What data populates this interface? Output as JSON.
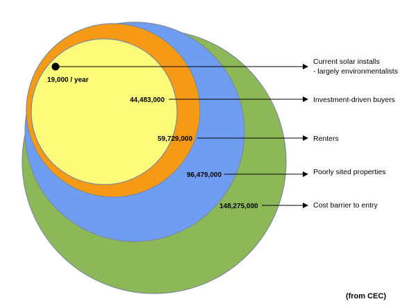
{
  "diagram": {
    "source_note": "(from CEC)",
    "colors": {
      "cost_barrier": "#8db857",
      "poorly_sited": "#6f9df2",
      "renters": "#f69a16",
      "investment": "#fcfc7a",
      "outline": "#7a8a9a",
      "dot": "#000000"
    },
    "layers": [
      {
        "value": "148,275,000",
        "label_lines": [
          "Cost barrier to entry"
        ]
      },
      {
        "value": "96,479,000",
        "label_lines": [
          "Poorly sited properties"
        ]
      },
      {
        "value": "59,729,000",
        "label_lines": [
          "Renters"
        ]
      },
      {
        "value": "44,483,000",
        "label_lines": [
          "Investment-driven buyers"
        ]
      },
      {
        "value": "19,000 / year",
        "label_lines": [
          "Current solar installs",
          "- largely environmentalists"
        ]
      }
    ]
  }
}
